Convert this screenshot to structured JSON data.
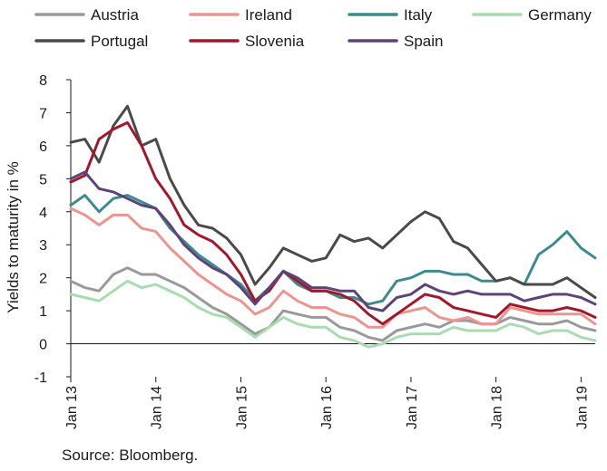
{
  "source_note": "Source: Bloomberg.",
  "chart_data": {
    "type": "line",
    "title": "",
    "xlabel": "",
    "ylabel": "Yields to maturity in %",
    "ylim": [
      -1,
      8
    ],
    "yticks": [
      -1,
      0,
      1,
      2,
      3,
      4,
      5,
      6,
      7,
      8
    ],
    "xlim": [
      "2013-01",
      "2019-03"
    ],
    "xticks": [
      {
        "label": "Jan 13",
        "date": "2013-01"
      },
      {
        "label": "Jan 14",
        "date": "2014-01"
      },
      {
        "label": "Jan 15",
        "date": "2015-01"
      },
      {
        "label": "Jan 16",
        "date": "2016-01"
      },
      {
        "label": "Jan 17",
        "date": "2017-01"
      },
      {
        "label": "Jan 18",
        "date": "2018-01"
      },
      {
        "label": "Jan 19",
        "date": "2019-01"
      }
    ],
    "grid": false,
    "legend": "top",
    "x": [
      "2013-01",
      "2013-03",
      "2013-05",
      "2013-07",
      "2013-09",
      "2013-11",
      "2014-01",
      "2014-03",
      "2014-05",
      "2014-07",
      "2014-09",
      "2014-11",
      "2015-01",
      "2015-03",
      "2015-05",
      "2015-07",
      "2015-09",
      "2015-11",
      "2016-01",
      "2016-03",
      "2016-05",
      "2016-07",
      "2016-09",
      "2016-11",
      "2017-01",
      "2017-03",
      "2017-05",
      "2017-07",
      "2017-09",
      "2017-11",
      "2018-01",
      "2018-03",
      "2018-05",
      "2018-07",
      "2018-09",
      "2018-11",
      "2019-01",
      "2019-03"
    ],
    "series": [
      {
        "name": "Austria",
        "color": "#999999",
        "values": [
          1.9,
          1.7,
          1.6,
          2.1,
          2.3,
          2.1,
          2.1,
          1.9,
          1.7,
          1.4,
          1.1,
          0.9,
          0.6,
          0.3,
          0.5,
          1.0,
          0.9,
          0.8,
          0.8,
          0.5,
          0.4,
          0.2,
          0.1,
          0.4,
          0.5,
          0.6,
          0.5,
          0.7,
          0.7,
          0.6,
          0.6,
          0.8,
          0.7,
          0.6,
          0.6,
          0.7,
          0.5,
          0.4
        ]
      },
      {
        "name": "Ireland",
        "color": "#e8968f",
        "values": [
          4.1,
          3.9,
          3.6,
          3.9,
          3.9,
          3.5,
          3.4,
          2.9,
          2.5,
          2.1,
          1.8,
          1.5,
          1.3,
          0.9,
          1.1,
          1.6,
          1.3,
          1.1,
          1.1,
          0.9,
          0.8,
          0.5,
          0.5,
          0.9,
          1.0,
          1.1,
          0.8,
          0.7,
          0.8,
          0.6,
          0.6,
          1.1,
          1.0,
          0.9,
          0.9,
          0.9,
          0.9,
          0.6
        ]
      },
      {
        "name": "Italy",
        "color": "#3d8b8d",
        "values": [
          4.2,
          4.5,
          4.0,
          4.4,
          4.5,
          4.3,
          4.1,
          3.5,
          3.1,
          2.7,
          2.4,
          2.1,
          1.8,
          1.3,
          1.7,
          2.2,
          1.8,
          1.6,
          1.6,
          1.4,
          1.4,
          1.2,
          1.3,
          1.9,
          2.0,
          2.2,
          2.2,
          2.1,
          2.1,
          1.9,
          1.9,
          2.0,
          1.8,
          2.7,
          3.0,
          3.4,
          2.9,
          2.6
        ]
      },
      {
        "name": "Germany",
        "color": "#a8dcb0",
        "values": [
          1.5,
          1.4,
          1.3,
          1.6,
          1.9,
          1.7,
          1.8,
          1.6,
          1.4,
          1.1,
          0.9,
          0.8,
          0.5,
          0.2,
          0.5,
          0.8,
          0.6,
          0.5,
          0.5,
          0.2,
          0.1,
          -0.1,
          0.0,
          0.2,
          0.3,
          0.3,
          0.3,
          0.5,
          0.4,
          0.4,
          0.4,
          0.6,
          0.5,
          0.3,
          0.4,
          0.4,
          0.2,
          0.1
        ]
      },
      {
        "name": "Portugal",
        "color": "#4a4a4a",
        "values": [
          6.1,
          6.2,
          5.5,
          6.6,
          7.2,
          6.0,
          6.2,
          5.0,
          4.2,
          3.6,
          3.5,
          3.2,
          2.7,
          1.8,
          2.3,
          2.9,
          2.7,
          2.5,
          2.6,
          3.3,
          3.1,
          3.2,
          2.9,
          3.3,
          3.7,
          4.0,
          3.8,
          3.1,
          2.9,
          2.4,
          1.9,
          2.0,
          1.8,
          1.8,
          1.8,
          2.0,
          1.7,
          1.4
        ]
      },
      {
        "name": "Slovenia",
        "color": "#a0182a",
        "values": [
          4.9,
          5.1,
          6.2,
          6.5,
          6.7,
          6.0,
          5.0,
          4.4,
          3.6,
          3.3,
          3.1,
          2.7,
          2.1,
          1.3,
          1.6,
          2.2,
          1.9,
          1.6,
          1.6,
          1.5,
          1.3,
          0.9,
          0.6,
          0.9,
          1.2,
          1.5,
          1.4,
          1.1,
          1.0,
          0.9,
          0.8,
          1.2,
          1.1,
          1.0,
          1.0,
          1.1,
          1.0,
          0.8
        ]
      },
      {
        "name": "Spain",
        "color": "#5e4377",
        "values": [
          5.0,
          5.2,
          4.7,
          4.6,
          4.4,
          4.2,
          4.1,
          3.6,
          3.0,
          2.6,
          2.3,
          2.1,
          1.7,
          1.2,
          1.7,
          2.2,
          2.0,
          1.7,
          1.7,
          1.6,
          1.6,
          1.1,
          1.0,
          1.4,
          1.5,
          1.8,
          1.6,
          1.5,
          1.6,
          1.5,
          1.5,
          1.5,
          1.3,
          1.4,
          1.5,
          1.5,
          1.4,
          1.2
        ]
      }
    ]
  }
}
